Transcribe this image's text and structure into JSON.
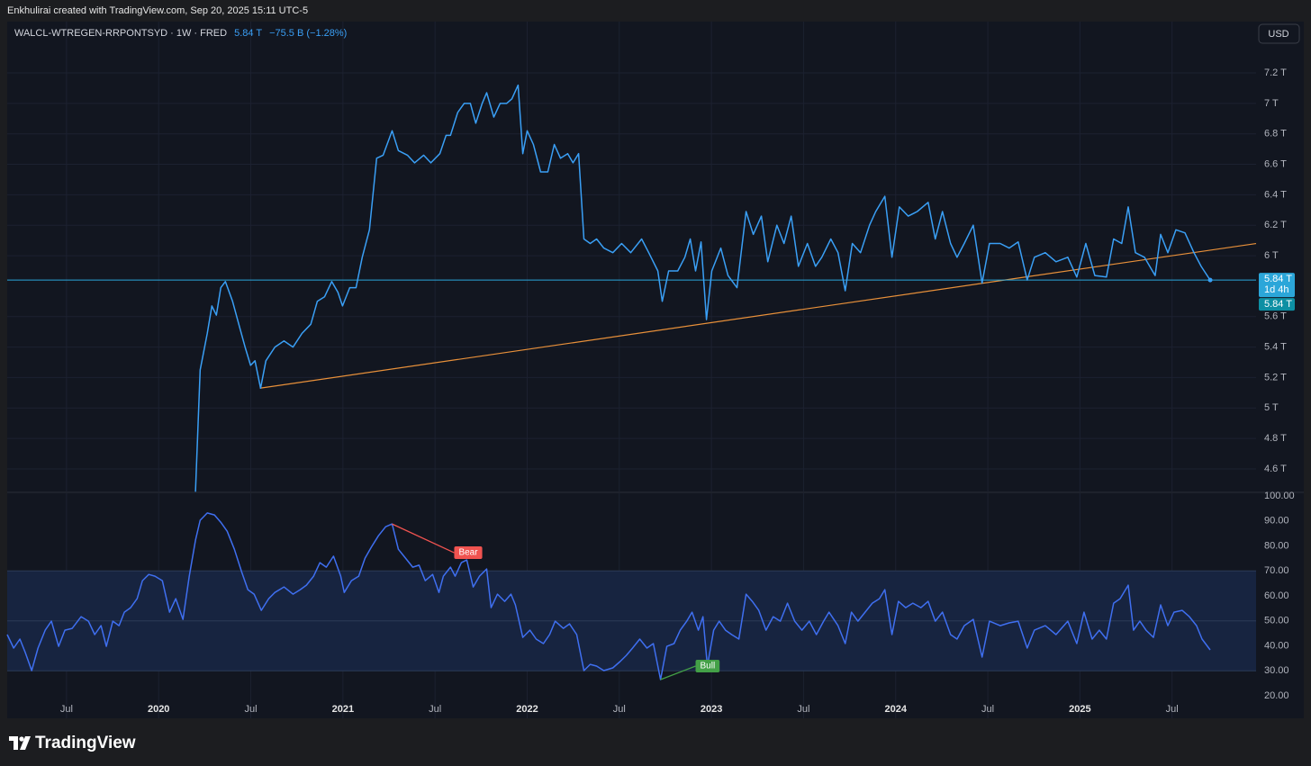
{
  "header": {
    "text": "Enkhulirai created with TradingView.com, Sep 20, 2025 15:11 UTC-5"
  },
  "currency": "USD",
  "footer": {
    "brand": "TradingView"
  },
  "chart_data": [
    {
      "type": "line",
      "title": "WALCL-WTREGEN-RRPONTSYD · 1W · FRED",
      "last_value": "5.84 T",
      "change": "−75.5 B (−1.28%)",
      "color": "#3a9ff5",
      "xlim": [
        2019.178,
        2025.956
      ],
      "ylim": [
        4.452,
        7.537
      ],
      "yticks": [
        {
          "value": 4.6,
          "label": "4.6 T"
        },
        {
          "value": 4.8,
          "label": "4.8 T"
        },
        {
          "value": 5,
          "label": "5 T"
        },
        {
          "value": 5.2,
          "label": "5.2 T"
        },
        {
          "value": 5.4,
          "label": "5.4 T"
        },
        {
          "value": 5.6,
          "label": "5.6 T"
        },
        {
          "value": 6,
          "label": "6 T"
        },
        {
          "value": 6.2,
          "label": "6.2 T"
        },
        {
          "value": 6.4,
          "label": "6.4 T"
        },
        {
          "value": 6.6,
          "label": "6.6 T"
        },
        {
          "value": 6.8,
          "label": "6.8 T"
        },
        {
          "value": 7,
          "label": "7 T"
        },
        {
          "value": 7.2,
          "label": "7.2 T"
        }
      ],
      "grid": true,
      "price_line": {
        "value": 5.84,
        "label": "5.84 T",
        "color": "#2ba6d9"
      },
      "countdown": "1d 4h",
      "close_label": {
        "value": 5.84,
        "label": "5.84 T",
        "color": "#0d8fa3"
      },
      "trend_line": {
        "x": [
          2020.55,
          2025.956
        ],
        "values": [
          5.13,
          6.08
        ],
        "color": "#e8903a"
      },
      "x": [
        2020.2,
        2020.225,
        2020.264,
        2020.289,
        2020.313,
        2020.337,
        2020.362,
        2020.401,
        2020.435,
        2020.469,
        2020.499,
        2020.523,
        2020.553,
        2020.582,
        2020.631,
        2020.68,
        2020.729,
        2020.778,
        2020.826,
        2020.861,
        2020.9,
        2020.939,
        2020.973,
        2020.998,
        2021.037,
        2021.071,
        2021.105,
        2021.144,
        2021.183,
        2021.218,
        2021.267,
        2021.301,
        2021.35,
        2021.389,
        2021.438,
        2021.477,
        2021.526,
        2021.56,
        2021.584,
        2021.623,
        2021.658,
        2021.692,
        2021.721,
        2021.756,
        2021.78,
        2021.819,
        2021.853,
        2021.888,
        2021.917,
        2021.951,
        2021.976,
        2022.0,
        2022.034,
        2022.073,
        2022.112,
        2022.147,
        2022.181,
        2022.22,
        2022.249,
        2022.279,
        2022.308,
        2022.342,
        2022.377,
        2022.416,
        2022.465,
        2022.513,
        2022.562,
        2022.621,
        2022.66,
        2022.709,
        2022.733,
        2022.768,
        2022.817,
        2022.856,
        2022.885,
        2022.914,
        2022.944,
        2022.973,
        2023.002,
        2023.051,
        2023.09,
        2023.139,
        2023.188,
        2023.227,
        2023.271,
        2023.306,
        2023.355,
        2023.394,
        2023.433,
        2023.472,
        2023.521,
        2023.565,
        2023.599,
        2023.648,
        2023.687,
        2023.726,
        2023.765,
        2023.809,
        2023.858,
        2023.892,
        2023.941,
        2023.98,
        2024.02,
        2024.068,
        2024.117,
        2024.176,
        2024.215,
        2024.254,
        2024.298,
        2024.333,
        2024.372,
        2024.421,
        2024.469,
        2024.509,
        2024.567,
        2024.616,
        2024.665,
        2024.714,
        2024.753,
        2024.812,
        2024.87,
        2024.934,
        2024.983,
        2025.032,
        2025.081,
        2025.144,
        2025.183,
        2025.227,
        2025.262,
        2025.301,
        2025.35,
        2025.408,
        2025.438,
        2025.477,
        2025.521,
        2025.57,
        2025.619,
        2025.658,
        2025.707
      ],
      "values": [
        4.45,
        5.25,
        5.49,
        5.67,
        5.61,
        5.79,
        5.83,
        5.7,
        5.55,
        5.4,
        5.28,
        5.31,
        5.13,
        5.31,
        5.4,
        5.44,
        5.4,
        5.49,
        5.55,
        5.7,
        5.73,
        5.83,
        5.76,
        5.67,
        5.79,
        5.79,
        5.99,
        6.17,
        6.64,
        6.66,
        6.82,
        6.69,
        6.66,
        6.61,
        6.66,
        6.61,
        6.67,
        6.79,
        6.79,
        6.94,
        7.0,
        7.0,
        6.87,
        7.0,
        7.07,
        6.91,
        7.0,
        7.0,
        7.03,
        7.12,
        6.67,
        6.82,
        6.73,
        6.55,
        6.55,
        6.73,
        6.64,
        6.67,
        6.61,
        6.67,
        6.11,
        6.08,
        6.11,
        6.05,
        6.02,
        6.08,
        6.02,
        6.11,
        6.02,
        5.9,
        5.7,
        5.9,
        5.9,
        5.99,
        6.11,
        5.9,
        6.09,
        5.58,
        5.9,
        6.05,
        5.87,
        5.79,
        6.29,
        6.14,
        6.26,
        5.96,
        6.2,
        6.08,
        6.26,
        5.93,
        6.08,
        5.93,
        5.99,
        6.11,
        6.02,
        5.77,
        6.08,
        6.02,
        6.2,
        6.29,
        6.39,
        5.99,
        6.32,
        6.26,
        6.29,
        6.35,
        6.11,
        6.29,
        6.08,
        5.99,
        6.08,
        6.2,
        5.82,
        6.08,
        6.08,
        6.05,
        6.09,
        5.84,
        5.99,
        6.02,
        5.96,
        5.99,
        5.86,
        6.08,
        5.87,
        5.86,
        6.11,
        6.08,
        6.32,
        6.02,
        5.99,
        5.87,
        6.14,
        6.02,
        6.17,
        6.15,
        6.02,
        5.93,
        5.84
      ]
    },
    {
      "type": "line",
      "color": "#3f6ff0",
      "xlim": [
        2019.178,
        2025.956
      ],
      "ylim": [
        11.0,
        101.1
      ],
      "yticks": [
        {
          "value": 20,
          "label": "20.00"
        },
        {
          "value": 30,
          "label": "30.00"
        },
        {
          "value": 40,
          "label": "40.00"
        },
        {
          "value": 50,
          "label": "50.00"
        },
        {
          "value": 60,
          "label": "60.00"
        },
        {
          "value": 70,
          "label": "70.00"
        },
        {
          "value": 80,
          "label": "80.00"
        },
        {
          "value": 90,
          "label": "90.00"
        },
        {
          "value": 100,
          "label": "100.00"
        }
      ],
      "xticks": [
        {
          "value": 2019.5,
          "label": "Jul"
        },
        2020,
        {
          "value": 2020.5,
          "label": "Jul"
        },
        2021,
        {
          "value": 2021.5,
          "label": "Jul"
        },
        2022,
        {
          "value": 2022.5,
          "label": "Jul"
        },
        2023,
        {
          "value": 2023.5,
          "label": "Jul"
        },
        2024,
        {
          "value": 2024.5,
          "label": "Jul"
        },
        2025,
        {
          "value": 2025.5,
          "label": "Jul"
        }
      ],
      "band": [
        30,
        70
      ],
      "midline": 50,
      "annotations": [
        {
          "text": "Bear",
          "color": "#f05350",
          "x": [
            2021.267,
            2021.604
          ],
          "values": [
            88.8,
            77.3
          ]
        },
        {
          "text": "Bull",
          "color": "#43a047",
          "x": [
            2022.724,
            2022.914
          ],
          "values": [
            26.5,
            31.9
          ]
        }
      ],
      "x": [
        2019.178,
        2019.213,
        2019.247,
        2019.276,
        2019.311,
        2019.345,
        2019.384,
        2019.418,
        2019.457,
        2019.491,
        2019.531,
        2019.579,
        2019.619,
        2019.653,
        2019.687,
        2019.716,
        2019.751,
        2019.785,
        2019.814,
        2019.848,
        2019.883,
        2019.912,
        2019.946,
        2019.98,
        2020.02,
        2020.059,
        2020.093,
        2020.132,
        2020.166,
        2020.2,
        2020.225,
        2020.264,
        2020.303,
        2020.337,
        2020.372,
        2020.411,
        2020.45,
        2020.484,
        2020.518,
        2020.557,
        2020.597,
        2020.631,
        2020.68,
        2020.729,
        2020.768,
        2020.802,
        2020.841,
        2020.875,
        2020.91,
        2020.949,
        2020.988,
        2021.007,
        2021.046,
        2021.086,
        2021.12,
        2021.154,
        2021.193,
        2021.232,
        2021.267,
        2021.301,
        2021.34,
        2021.379,
        2021.413,
        2021.447,
        2021.487,
        2021.521,
        2021.545,
        2021.584,
        2021.609,
        2021.643,
        2021.672,
        2021.707,
        2021.741,
        2021.78,
        2021.804,
        2021.839,
        2021.878,
        2021.912,
        2021.936,
        2021.976,
        2022.015,
        2022.049,
        2022.088,
        2022.122,
        2022.152,
        2022.196,
        2022.23,
        2022.269,
        2022.308,
        2022.342,
        2022.377,
        2022.416,
        2022.465,
        2022.504,
        2022.538,
        2022.572,
        2022.611,
        2022.65,
        2022.685,
        2022.724,
        2022.758,
        2022.797,
        2022.831,
        2022.866,
        2022.895,
        2022.929,
        2022.954,
        2022.978,
        2023.012,
        2023.042,
        2023.076,
        2023.11,
        2023.149,
        2023.188,
        2023.222,
        2023.257,
        2023.296,
        2023.335,
        2023.374,
        2023.413,
        2023.452,
        2023.491,
        2023.531,
        2023.57,
        2023.609,
        2023.638,
        2023.687,
        2023.726,
        2023.76,
        2023.795,
        2023.834,
        2023.873,
        2023.912,
        2023.941,
        2023.98,
        2024.015,
        2024.054,
        2024.093,
        2024.137,
        2024.176,
        2024.215,
        2024.254,
        2024.298,
        2024.333,
        2024.372,
        2024.421,
        2024.469,
        2024.509,
        2024.567,
        2024.616,
        2024.665,
        2024.714,
        2024.753,
        2024.812,
        2024.87,
        2024.934,
        2024.983,
        2025.022,
        2025.066,
        2025.105,
        2025.144,
        2025.183,
        2025.218,
        2025.262,
        2025.291,
        2025.325,
        2025.359,
        2025.399,
        2025.438,
        2025.477,
        2025.511,
        2025.555,
        2025.594,
        2025.633,
        2025.663,
        2025.707
      ],
      "values": [
        44.5,
        39.1,
        42.7,
        37.3,
        30.1,
        39.1,
        46.3,
        49.9,
        39.8,
        46.3,
        47.0,
        51.7,
        49.9,
        44.5,
        48.1,
        39.8,
        49.9,
        48.1,
        53.5,
        55.3,
        58.9,
        66.1,
        68.6,
        67.9,
        66.1,
        53.5,
        58.9,
        50.6,
        67.9,
        82.3,
        90.3,
        93.2,
        92.4,
        89.5,
        85.9,
        78.7,
        69.7,
        62.5,
        60.7,
        54.2,
        58.9,
        61.4,
        63.6,
        60.7,
        62.5,
        64.3,
        67.9,
        73.3,
        71.5,
        75.9,
        67.9,
        61.4,
        66.1,
        67.9,
        75.1,
        79.5,
        84.1,
        87.7,
        88.8,
        78.7,
        75.1,
        71.5,
        72.3,
        66.1,
        68.6,
        61.4,
        67.9,
        71.5,
        67.9,
        73.3,
        74.4,
        63.6,
        67.9,
        70.8,
        55.3,
        60.7,
        57.8,
        60.7,
        56.4,
        43.4,
        46.3,
        42.7,
        40.9,
        44.5,
        49.9,
        47.0,
        48.8,
        44.5,
        30.1,
        32.6,
        31.9,
        30.1,
        31.2,
        33.7,
        36.2,
        39.1,
        42.7,
        39.1,
        40.9,
        26.5,
        39.8,
        40.9,
        46.3,
        49.9,
        53.5,
        46.3,
        51.7,
        31.9,
        46.3,
        49.9,
        46.3,
        44.5,
        42.7,
        60.7,
        57.8,
        54.2,
        46.3,
        51.7,
        49.9,
        57.1,
        49.9,
        46.3,
        49.9,
        44.5,
        49.9,
        53.5,
        48.1,
        40.9,
        53.5,
        49.9,
        53.5,
        57.1,
        58.9,
        62.5,
        44.5,
        57.8,
        55.3,
        57.1,
        55.3,
        57.8,
        49.9,
        53.5,
        44.5,
        42.7,
        48.1,
        50.6,
        35.5,
        49.9,
        48.1,
        49.2,
        49.9,
        39.1,
        46.3,
        48.1,
        44.5,
        49.9,
        40.9,
        53.5,
        42.7,
        46.3,
        42.7,
        57.1,
        58.9,
        64.3,
        46.3,
        49.9,
        46.3,
        43.4,
        56.4,
        48.1,
        53.5,
        54.2,
        51.7,
        48.1,
        42.7,
        38.4
      ]
    }
  ]
}
